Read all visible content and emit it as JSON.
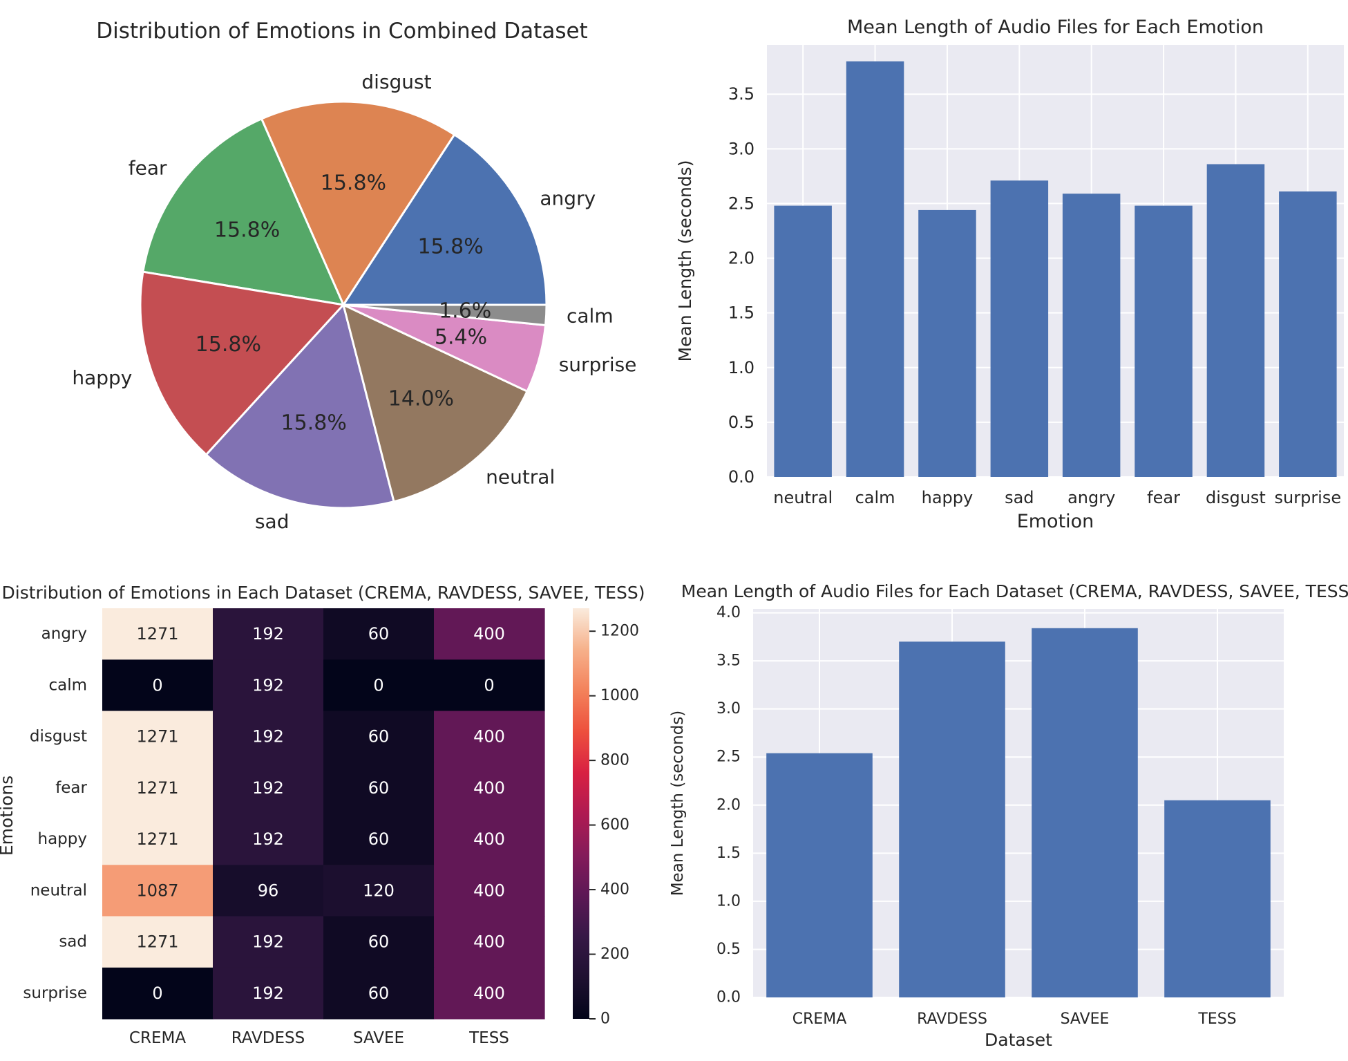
{
  "chart_data": [
    {
      "type": "pie",
      "title": "Distribution of Emotions in Combined Dataset",
      "labels": [
        "angry",
        "disgust",
        "fear",
        "happy",
        "sad",
        "neutral",
        "surprise",
        "calm"
      ],
      "values": [
        15.8,
        15.8,
        15.8,
        15.8,
        15.8,
        14.0,
        5.4,
        1.6
      ],
      "value_labels": [
        "15.8%",
        "15.8%",
        "15.8%",
        "15.8%",
        "15.8%",
        "14.0%",
        "5.4%",
        "1.6%"
      ],
      "colors": [
        "#4c72b0",
        "#dd8452",
        "#55a868",
        "#c44e52",
        "#8172b3",
        "#937860",
        "#da8bc3",
        "#8c8c8c"
      ]
    },
    {
      "type": "bar",
      "title": "Mean Length of Audio Files for Each Emotion",
      "xlabel": "Emotion",
      "ylabel": "Mean Length (seconds)",
      "categories": [
        "neutral",
        "calm",
        "happy",
        "sad",
        "angry",
        "fear",
        "disgust",
        "surprise"
      ],
      "values": [
        2.48,
        3.8,
        2.44,
        2.71,
        2.59,
        2.48,
        2.86,
        2.61
      ],
      "ylim": [
        0,
        3.95
      ],
      "yticks": [
        0.0,
        0.5,
        1.0,
        1.5,
        2.0,
        2.5,
        3.0,
        3.5
      ],
      "grid": true,
      "bar_color": "#4c72b0"
    },
    {
      "type": "heatmap",
      "title": "Distribution of Emotions in Each Dataset (CREMA, RAVDESS, SAVEE, TESS)",
      "ylabel": "Emotions",
      "columns": [
        "CREMA",
        "RAVDESS",
        "SAVEE",
        "TESS"
      ],
      "rows": [
        "angry",
        "calm",
        "disgust",
        "fear",
        "happy",
        "neutral",
        "sad",
        "surprise"
      ],
      "values": [
        [
          1271,
          192,
          60,
          400
        ],
        [
          0,
          192,
          0,
          0
        ],
        [
          1271,
          192,
          60,
          400
        ],
        [
          1271,
          192,
          60,
          400
        ],
        [
          1271,
          192,
          60,
          400
        ],
        [
          1087,
          96,
          120,
          400
        ],
        [
          1271,
          192,
          60,
          400
        ],
        [
          0,
          192,
          60,
          400
        ]
      ],
      "vmin": 0,
      "vmax": 1271,
      "colorbar_ticks": [
        0,
        200,
        400,
        600,
        800,
        1000,
        1200
      ],
      "colormap": "rocket"
    },
    {
      "type": "bar",
      "title": "Mean Length of Audio Files for Each Dataset (CREMA, RAVDESS, SAVEE, TESS)",
      "xlabel": "Dataset",
      "ylabel": "Mean Length (seconds)",
      "categories": [
        "CREMA",
        "RAVDESS",
        "SAVEE",
        "TESS"
      ],
      "values": [
        2.54,
        3.7,
        3.84,
        2.05
      ],
      "ylim": [
        0,
        4.04
      ],
      "yticks": [
        0.0,
        0.5,
        1.0,
        1.5,
        2.0,
        2.5,
        3.0,
        3.5,
        4.0
      ],
      "grid": true,
      "bar_color": "#4c72b0"
    }
  ]
}
